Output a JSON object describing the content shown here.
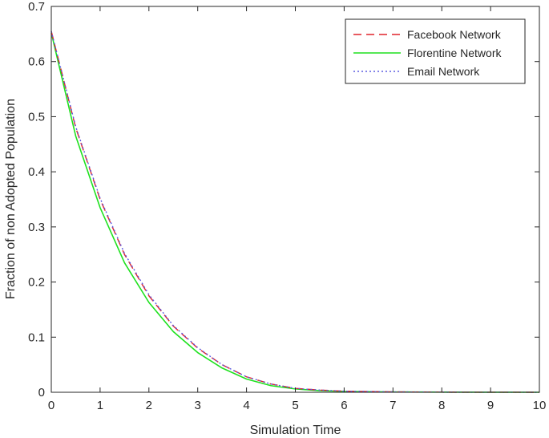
{
  "chart_data": {
    "type": "line",
    "title": "",
    "xlabel": "Simulation Time",
    "ylabel": "Fraction of non Adopted Population",
    "xlim": [
      0,
      10
    ],
    "ylim": [
      0,
      0.7
    ],
    "xticks": [
      "0",
      "1",
      "2",
      "3",
      "4",
      "5",
      "6",
      "7",
      "8",
      "9",
      "10"
    ],
    "yticks": [
      "0",
      "0.1",
      "0.2",
      "0.3",
      "0.4",
      "0.5",
      "0.6",
      "0.7"
    ],
    "grid": false,
    "legend_position": "top-right",
    "series": [
      {
        "name": "Facebook Network",
        "color": "#e0242b",
        "style": "dashed",
        "points": [
          [
            0,
            0.655
          ],
          [
            0.5,
            0.48
          ],
          [
            1,
            0.35
          ],
          [
            1.5,
            0.25
          ],
          [
            2,
            0.175
          ],
          [
            2.5,
            0.12
          ],
          [
            3,
            0.08
          ],
          [
            3.5,
            0.05
          ],
          [
            4,
            0.028
          ],
          [
            4.5,
            0.015
          ],
          [
            5,
            0.007
          ],
          [
            5.5,
            0.004
          ],
          [
            6,
            0.002
          ],
          [
            7,
            0.0007
          ],
          [
            8,
            0.0002
          ],
          [
            9,
            0.0001
          ],
          [
            10,
            0.0
          ]
        ]
      },
      {
        "name": "Florentine Network",
        "color": "#1ee11e",
        "style": "solid",
        "points": [
          [
            0,
            0.652
          ],
          [
            0.5,
            0.465
          ],
          [
            1,
            0.335
          ],
          [
            1.5,
            0.235
          ],
          [
            2,
            0.163
          ],
          [
            2.5,
            0.11
          ],
          [
            3,
            0.072
          ],
          [
            3.5,
            0.044
          ],
          [
            4,
            0.024
          ],
          [
            4.5,
            0.012
          ],
          [
            5,
            0.006
          ],
          [
            5.5,
            0.003
          ],
          [
            6,
            0.0015
          ],
          [
            7,
            0.0005
          ],
          [
            8,
            0.0002
          ],
          [
            9,
            0.0001
          ],
          [
            10,
            0.0
          ]
        ]
      },
      {
        "name": "Email Network",
        "color": "#5a5ae0",
        "style": "dotted",
        "points": [
          [
            0,
            0.655
          ],
          [
            0.5,
            0.482
          ],
          [
            1,
            0.352
          ],
          [
            1.5,
            0.252
          ],
          [
            2,
            0.177
          ],
          [
            2.5,
            0.121
          ],
          [
            3,
            0.081
          ],
          [
            3.5,
            0.05
          ],
          [
            4,
            0.028
          ],
          [
            4.5,
            0.015
          ],
          [
            5,
            0.007
          ],
          [
            5.5,
            0.004
          ],
          [
            6,
            0.002
          ],
          [
            7,
            0.0007
          ],
          [
            8,
            0.0002
          ],
          [
            9,
            0.0001
          ],
          [
            10,
            0.0
          ]
        ]
      }
    ]
  }
}
